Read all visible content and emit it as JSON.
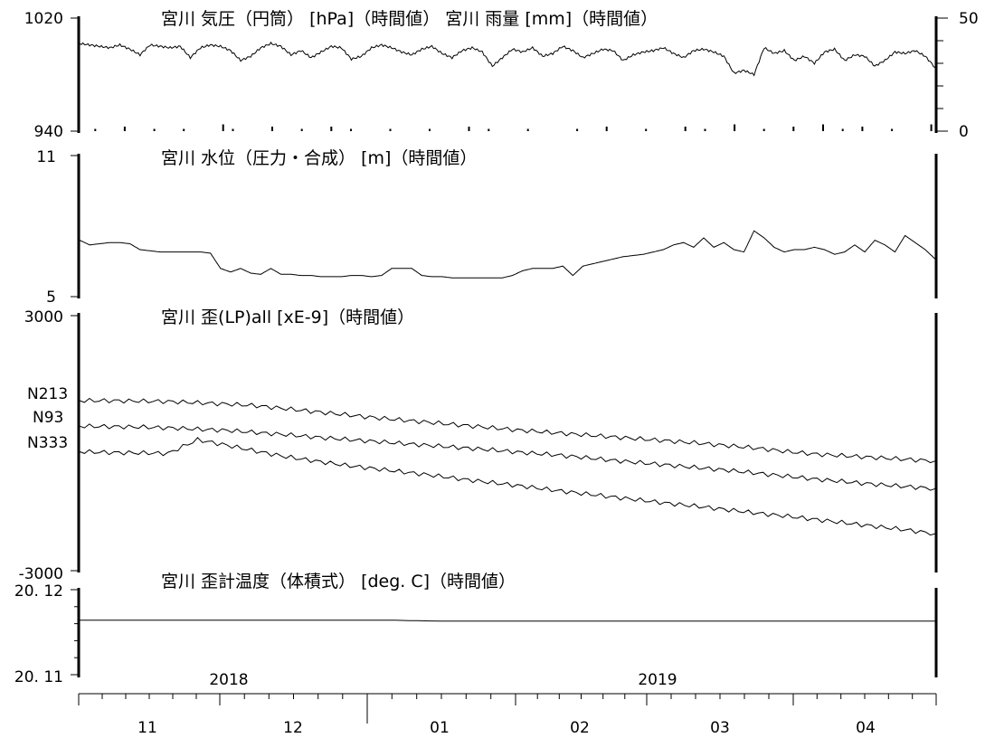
{
  "chart_data": [
    {
      "type": "line",
      "title": "宮川 気圧（円筒） [hPa]（時間値） 宮川 雨量 [mm]（時間値）",
      "y_left_ticks": [
        "1020",
        "940"
      ],
      "y_right_ticks": [
        "50",
        "0"
      ],
      "ylim": [
        940,
        1020
      ],
      "y2lim": [
        0,
        50
      ],
      "series": [
        {
          "axis": "left",
          "kind": "line",
          "values": [
            1002,
            1001,
            1000,
            999,
            1001,
            998,
            994,
            1001,
            1000,
            999,
            1000,
            992,
            999,
            1001,
            1000,
            997,
            990,
            993,
            999,
            1002,
            1000,
            994,
            997,
            992,
            996,
            1000,
            999,
            991,
            993,
            999,
            1001,
            999,
            996,
            994,
            998,
            1000,
            995,
            992,
            997,
            999,
            996,
            986,
            992,
            998,
            996,
            999,
            993,
            995,
            1000,
            997,
            992,
            995,
            998,
            997,
            990,
            994,
            996,
            997,
            999,
            995,
            992,
            997,
            998,
            996,
            993,
            981,
            983,
            980,
            999,
            995,
            997,
            990,
            993,
            988,
            996,
            998,
            990,
            994,
            993,
            986,
            990,
            996,
            995,
            997,
            993,
            985
          ]
        },
        {
          "axis": "right",
          "kind": "bar",
          "values": [
            0,
            1,
            0,
            0,
            2,
            0,
            0,
            1,
            0,
            0,
            1,
            0,
            0,
            0,
            3,
            1,
            0,
            0,
            0,
            2,
            0,
            0,
            1,
            0,
            0,
            2,
            0,
            1,
            0,
            0,
            0,
            1,
            0,
            0,
            0,
            1,
            0,
            0,
            0,
            2,
            0,
            1,
            0,
            0,
            0,
            1,
            0,
            0,
            0,
            0,
            1,
            0,
            0,
            2,
            0,
            0,
            0,
            1,
            0,
            0,
            0,
            2,
            0,
            1,
            0,
            0,
            3,
            0,
            0,
            1,
            0,
            0,
            2,
            0,
            0,
            3,
            0,
            1,
            0,
            2,
            0,
            0,
            1,
            0,
            0,
            0,
            3
          ]
        }
      ]
    },
    {
      "type": "line",
      "title": "宮川 水位（圧力・合成） [m]（時間値）",
      "y_ticks": [
        "11",
        "5"
      ],
      "ylim": [
        5,
        11
      ],
      "series": [
        {
          "values": [
            7.4,
            7.2,
            7.25,
            7.3,
            7.3,
            7.25,
            7.0,
            6.95,
            6.9,
            6.9,
            6.9,
            6.9,
            6.9,
            6.85,
            6.2,
            6.05,
            6.2,
            6.0,
            5.95,
            6.2,
            5.95,
            5.95,
            5.9,
            5.9,
            5.85,
            5.85,
            5.85,
            5.9,
            5.9,
            5.85,
            5.9,
            6.2,
            6.2,
            6.2,
            5.9,
            5.85,
            5.85,
            5.8,
            5.8,
            5.8,
            5.8,
            5.8,
            5.8,
            5.9,
            6.1,
            6.2,
            6.2,
            6.2,
            6.3,
            5.9,
            6.3,
            6.4,
            6.5,
            6.6,
            6.7,
            6.75,
            6.8,
            6.9,
            7.0,
            7.2,
            7.3,
            7.1,
            7.5,
            7.1,
            7.3,
            7.0,
            6.9,
            7.8,
            7.5,
            7.1,
            6.9,
            7.0,
            7.0,
            7.1,
            7.0,
            6.8,
            6.9,
            7.2,
            6.9,
            7.4,
            7.2,
            6.9,
            7.6,
            7.3,
            7.0,
            6.6
          ]
        }
      ]
    },
    {
      "type": "line",
      "title": "宮川 歪(LP)all [xE-9]（時間値）",
      "y_ticks": [
        "3000",
        "-3000"
      ],
      "ylim": [
        -3000,
        3000
      ],
      "series": [
        {
          "name": "N213",
          "values": [
            1000,
            1000,
            990,
            980,
            950,
            920,
            880,
            810,
            740,
            670,
            600,
            540,
            480,
            420,
            360,
            300,
            250,
            200,
            150,
            100,
            50,
            0,
            -60,
            -120,
            -200,
            -260,
            -300,
            -340,
            -380,
            -420
          ]
        },
        {
          "name": "N93",
          "values": [
            400,
            390,
            380,
            360,
            330,
            300,
            250,
            200,
            140,
            90,
            40,
            -10,
            -60,
            -110,
            -160,
            -220,
            -270,
            -330,
            -400,
            -460,
            -520,
            -580,
            -640,
            -710,
            -780,
            -850,
            -910,
            -970,
            -1020,
            -1070
          ]
        },
        {
          "name": "N333",
          "values": [
            -200,
            -220,
            -230,
            -240,
            80,
            -50,
            -190,
            -320,
            -420,
            -520,
            -600,
            -680,
            -760,
            -850,
            -930,
            -1010,
            -1100,
            -1180,
            -1260,
            -1340,
            -1420,
            -1490,
            -1570,
            -1650,
            -1720,
            -1800,
            -1880,
            -1960,
            -2040,
            -2130
          ]
        }
      ]
    },
    {
      "type": "line",
      "title": "宮川 歪計温度（体積式） [deg. C]（時間値）",
      "y_ticks": [
        "20. 12",
        "20. 11"
      ],
      "ylim": [
        20.11,
        20.12
      ],
      "series": [
        {
          "values": [
            20.1164,
            20.1164,
            20.1164,
            20.1164,
            20.1164,
            20.1164,
            20.1164,
            20.1164,
            20.1163,
            20.1163,
            20.1163,
            20.1163,
            20.1163,
            20.1163,
            20.1163,
            20.1163,
            20.1163,
            20.1163,
            20.1163,
            20.1163
          ]
        }
      ]
    }
  ],
  "x_axis": {
    "years": [
      "2018",
      "2019"
    ],
    "months": [
      "11",
      "12",
      "01",
      "02",
      "03",
      "04"
    ]
  }
}
